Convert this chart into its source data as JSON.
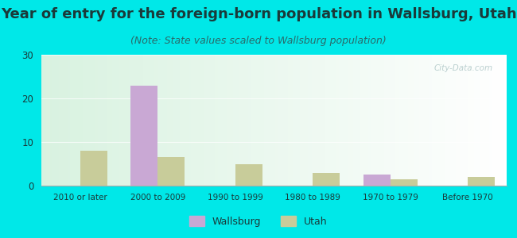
{
  "categories": [
    "2010 or later",
    "2000 to 2009",
    "1990 to 1999",
    "1980 to 1989",
    "1970 to 1979",
    "Before 1970"
  ],
  "wallsburg_values": [
    0,
    23,
    0,
    0,
    2.5,
    0
  ],
  "utah_values": [
    8,
    6.5,
    5,
    3,
    1.5,
    2
  ],
  "wallsburg_color": "#c9a8d4",
  "utah_color": "#c8cc9a",
  "title": "Year of entry for the foreign-born population in Wallsburg, Utah",
  "subtitle": "(Note: State values scaled to Wallsburg population)",
  "ylim": [
    0,
    30
  ],
  "yticks": [
    0,
    10,
    20,
    30
  ],
  "background_outer": "#00e8e8",
  "title_fontsize": 13,
  "subtitle_fontsize": 9,
  "legend_wallsburg": "Wallsburg",
  "legend_utah": "Utah",
  "bar_width": 0.35,
  "watermark": "City-Data.com",
  "title_color": "#1a3a3a",
  "subtitle_color": "#2a6a6a",
  "tick_label_color": "#1a3a3a"
}
